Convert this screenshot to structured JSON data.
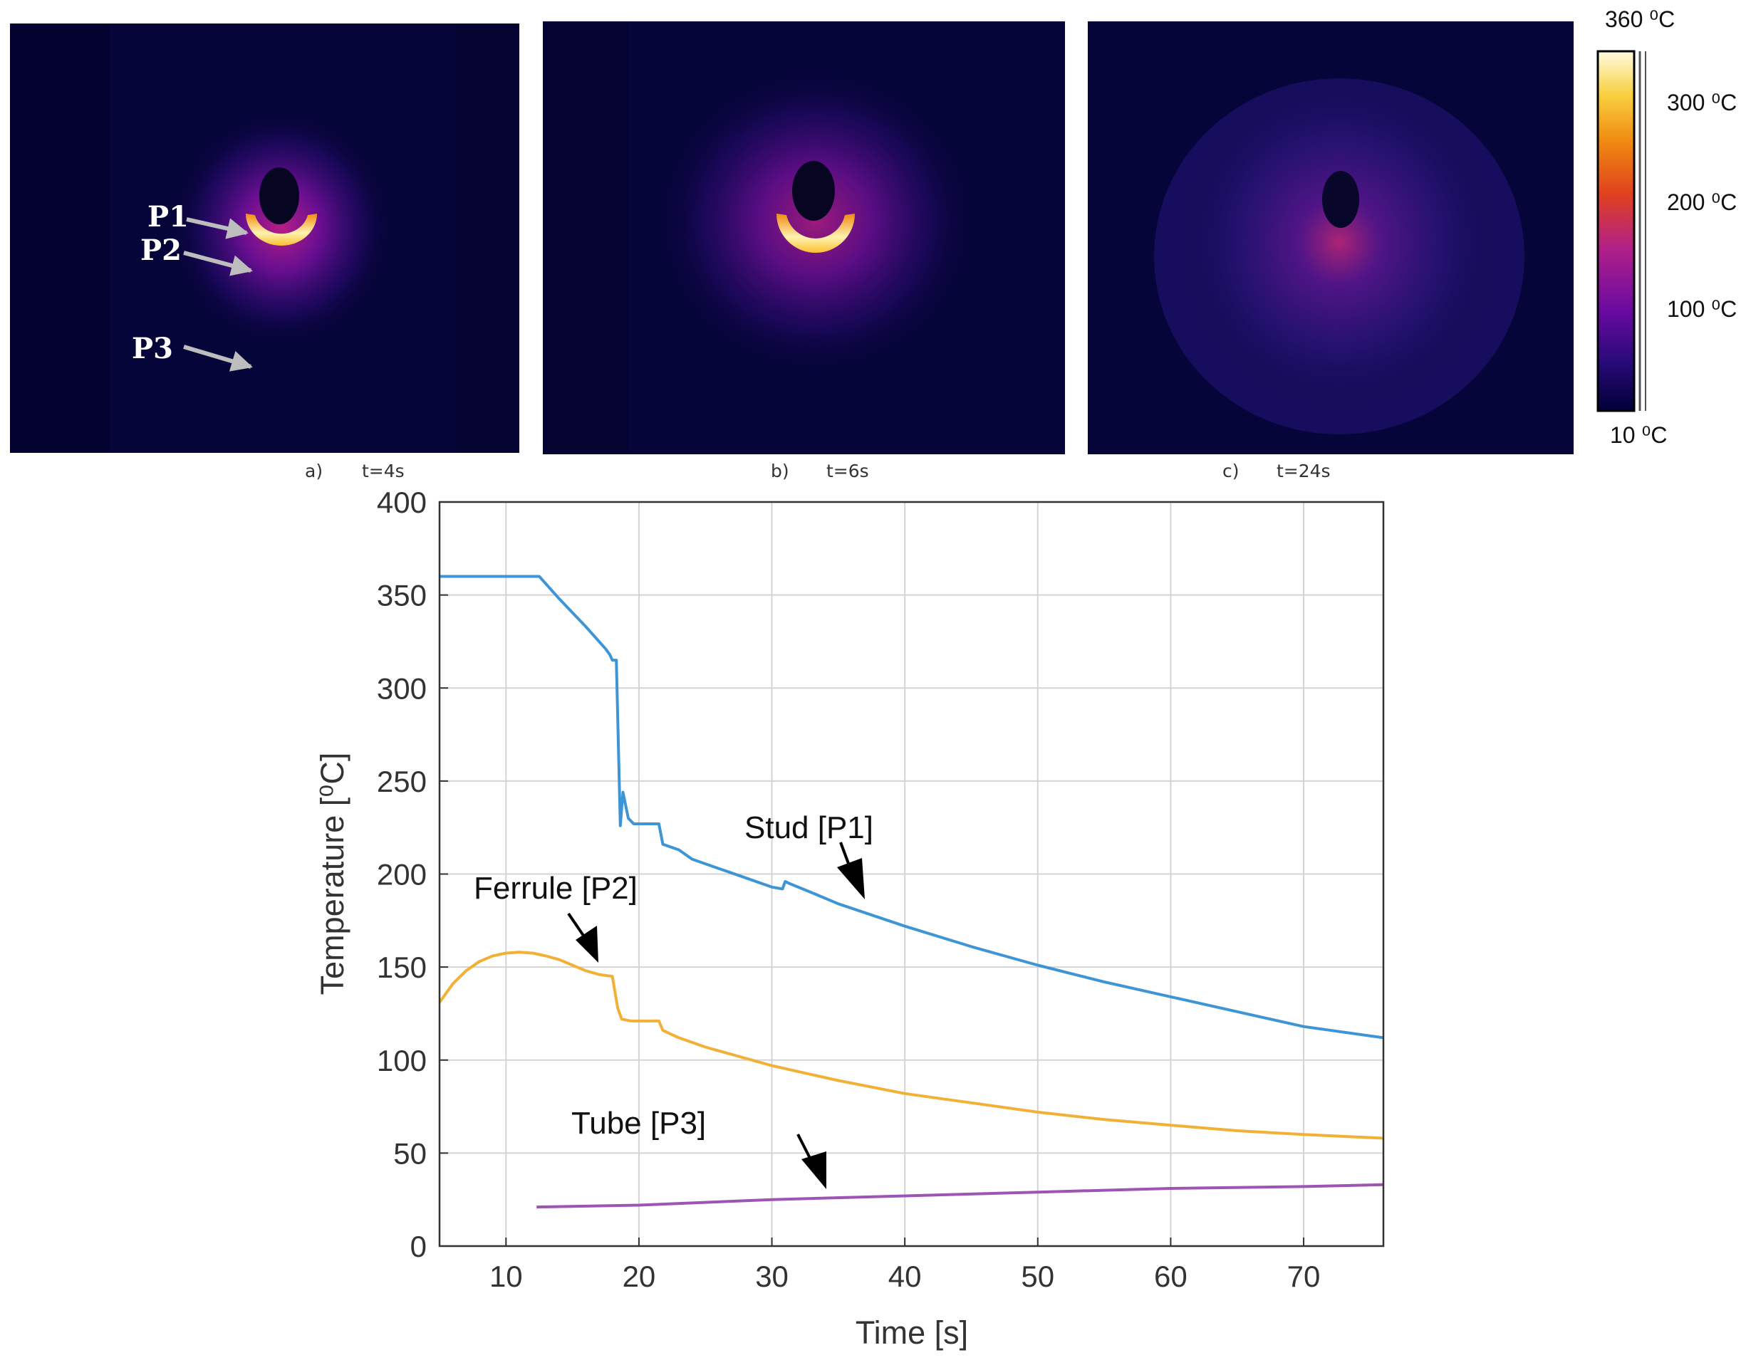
{
  "thermal_panels": [
    {
      "letter": "a)",
      "time": "t=4s"
    },
    {
      "letter": "b)",
      "time": "t=6s"
    },
    {
      "letter": "c)",
      "time": "t=24s"
    }
  ],
  "point_labels": [
    "P1",
    "P2",
    "P3"
  ],
  "colorbar": {
    "labels": [
      "360 ⁰C",
      "300 ⁰C",
      "200 ⁰C",
      "100 ⁰C",
      "10 ⁰C"
    ],
    "colors": [
      "#000038",
      "#2a0a7a",
      "#6a0aa0",
      "#b0208a",
      "#e04020",
      "#f08a10",
      "#f8d040",
      "#fffbe0"
    ]
  },
  "chart_data": {
    "type": "line",
    "xlabel": "Time [s]",
    "ylabel": "Temperature [⁰C]",
    "xlim": [
      5,
      76
    ],
    "ylim": [
      0,
      400
    ],
    "xticks": [
      10,
      20,
      30,
      40,
      50,
      60,
      70
    ],
    "yticks": [
      0,
      50,
      100,
      150,
      200,
      250,
      300,
      350,
      400
    ],
    "grid": true,
    "series": [
      {
        "name": "Stud [P1]",
        "color": "#3e95d6",
        "x": [
          5,
          12.5,
          14,
          16,
          17.5,
          17.8,
          18,
          18.3,
          18.6,
          18.8,
          19.2,
          19.6,
          21.5,
          21.8,
          23,
          24,
          26,
          28,
          30,
          30.8,
          31,
          31.3,
          33,
          35,
          40,
          45,
          50,
          55,
          60,
          65,
          70,
          76
        ],
        "values": [
          360,
          360,
          348,
          333,
          321,
          318,
          315,
          315,
          226,
          244,
          230,
          227,
          227,
          216,
          213,
          208,
          203,
          198,
          193,
          192,
          196,
          195,
          190,
          184,
          172,
          161,
          151,
          142,
          134,
          126,
          118,
          112
        ]
      },
      {
        "name": "Ferrule [P2]",
        "color": "#f2b136",
        "x": [
          5,
          6,
          7,
          8,
          9,
          10,
          11,
          12,
          13,
          14,
          15,
          16,
          17,
          18,
          18.4,
          18.7,
          19.4,
          21.5,
          21.8,
          23,
          25,
          30,
          35,
          40,
          45,
          50,
          55,
          60,
          65,
          70,
          76
        ],
        "values": [
          131,
          141,
          148,
          153,
          156,
          157.5,
          158,
          157.5,
          156,
          154,
          151,
          148,
          146,
          145,
          128,
          122,
          121,
          121,
          116,
          112,
          107,
          97,
          89,
          82,
          77,
          72,
          68,
          65,
          62,
          60,
          58
        ]
      },
      {
        "name": "Tube [P3]",
        "color": "#9d54b5",
        "x": [
          12.3,
          20,
          30,
          40,
          50,
          60,
          70,
          76
        ],
        "values": [
          21,
          22,
          25,
          27,
          29,
          31,
          32,
          33
        ]
      }
    ]
  }
}
